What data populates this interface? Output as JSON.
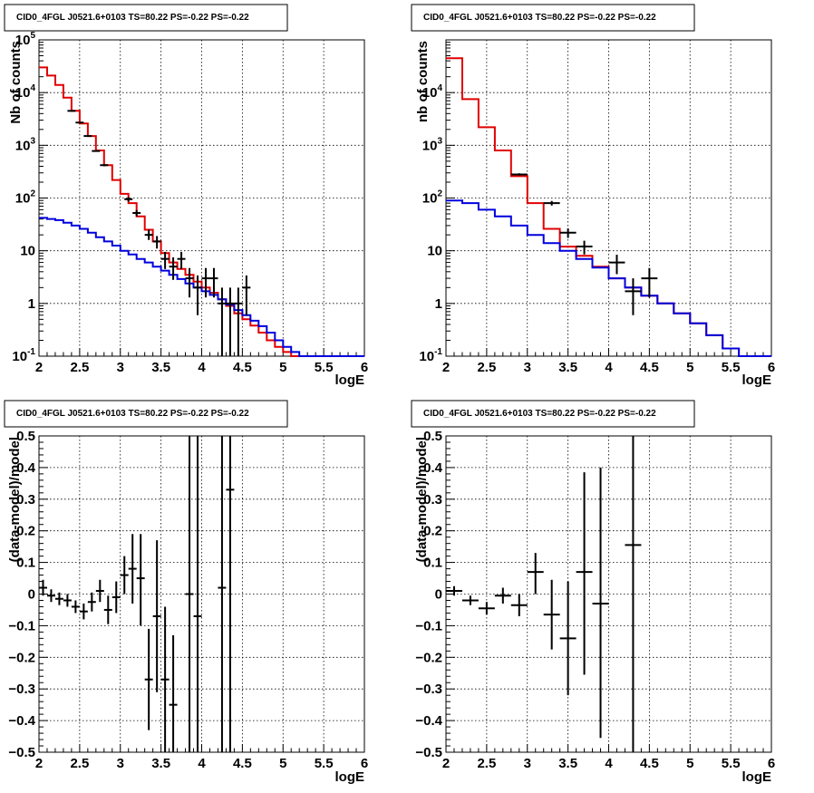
{
  "colors": {
    "data": "#000000",
    "total_model": "#e00000",
    "component_model": "#0000dd"
  },
  "chart_data": [
    {
      "type": "line",
      "title": "CID0_4FGL J0521.6+0103 TS=80.22 PS=-0.22 PS=-0.22",
      "xlabel": "logE",
      "ylabel": "Nb of counts",
      "xlim": [
        2,
        6
      ],
      "ylim": [
        0.1,
        100000
      ],
      "yscale": "log",
      "grid": true,
      "xticks": [
        "2",
        "2.5",
        "3",
        "3.5",
        "4",
        "4.5",
        "5",
        "5.5",
        "6"
      ],
      "yticks": [
        {
          "v": 0.1,
          "t": "10",
          "sup": "-1"
        },
        {
          "v": 1,
          "t": "1",
          "sup": ""
        },
        {
          "v": 10,
          "t": "10",
          "sup": ""
        },
        {
          "v": 100,
          "t": "10",
          "sup": "2"
        },
        {
          "v": 1000,
          "t": "10",
          "sup": "3"
        },
        {
          "v": 10000,
          "t": "10",
          "sup": "4"
        },
        {
          "v": 100000,
          "t": "10",
          "sup": "5"
        }
      ],
      "bin_edges": [
        2.0,
        2.1,
        2.2,
        2.3,
        2.4,
        2.5,
        2.6,
        2.7,
        2.8,
        2.9,
        3.0,
        3.1,
        3.2,
        3.3,
        3.4,
        3.5,
        3.6,
        3.7,
        3.8,
        3.9,
        4.0,
        4.1,
        4.2,
        4.3,
        4.4,
        4.5,
        4.6,
        4.7,
        4.8,
        4.9,
        5.0,
        5.1,
        5.2,
        5.3,
        5.4,
        5.5,
        5.6,
        5.7,
        5.8,
        5.9,
        6.0
      ],
      "series": [
        {
          "role": "total_model",
          "values": [
            30000,
            21000,
            14000,
            8000,
            4500,
            2600,
            1500,
            800,
            420,
            220,
            120,
            80,
            45,
            25,
            15,
            9,
            6,
            4.5,
            3.5,
            2.6,
            2.0,
            1.6,
            1.2,
            0.9,
            0.65,
            0.5,
            0.38,
            0.28,
            0.2,
            0.15,
            0.12,
            0.1,
            0.1,
            0.1,
            0.1,
            0.1,
            0.1,
            0.1,
            0.1,
            0.1
          ]
        },
        {
          "role": "component_model",
          "values": [
            42,
            40,
            38,
            34,
            30,
            26,
            22,
            18,
            15,
            12.5,
            10,
            8.5,
            7,
            6,
            5,
            4.2,
            3.5,
            2.9,
            2.4,
            2.0,
            1.7,
            1.45,
            1.2,
            0.95,
            0.75,
            0.6,
            0.47,
            0.37,
            0.28,
            0.2,
            0.15,
            0.12,
            0.1,
            0.1,
            0.1,
            0.1,
            0.1,
            0.1,
            0.1,
            0.1
          ]
        }
      ],
      "points": [
        {
          "x": 2.4,
          "y": 4500,
          "ex": 0.05,
          "lo": 4400,
          "hi": 4600
        },
        {
          "x": 2.5,
          "y": 2700,
          "ex": 0.05,
          "lo": 2650,
          "hi": 2750
        },
        {
          "x": 2.6,
          "y": 1500,
          "ex": 0.05,
          "lo": 1470,
          "hi": 1530
        },
        {
          "x": 2.7,
          "y": 780,
          "ex": 0.05,
          "lo": 760,
          "hi": 800
        },
        {
          "x": 2.8,
          "y": 420,
          "ex": 0.05,
          "lo": 400,
          "hi": 440
        },
        {
          "x": 3.1,
          "y": 95,
          "ex": 0.05,
          "lo": 86,
          "hi": 104
        },
        {
          "x": 3.2,
          "y": 52,
          "ex": 0.05,
          "lo": 45,
          "hi": 59
        },
        {
          "x": 3.35,
          "y": 20,
          "ex": 0.05,
          "lo": 16,
          "hi": 25
        },
        {
          "x": 3.45,
          "y": 15,
          "ex": 0.05,
          "lo": 11,
          "hi": 19
        },
        {
          "x": 3.55,
          "y": 7,
          "ex": 0.05,
          "lo": 4.5,
          "hi": 9.5
        },
        {
          "x": 3.65,
          "y": 5,
          "ex": 0.05,
          "lo": 2.8,
          "hi": 7.5
        },
        {
          "x": 3.75,
          "y": 7,
          "ex": 0.05,
          "lo": 4.5,
          "hi": 9.5
        },
        {
          "x": 3.85,
          "y": 3,
          "ex": 0.05,
          "lo": 1.3,
          "hi": 4.7
        },
        {
          "x": 3.95,
          "y": 2,
          "ex": 0.05,
          "lo": 0.6,
          "hi": 3.4
        },
        {
          "x": 4.05,
          "y": 3,
          "ex": 0.05,
          "lo": 1.3,
          "hi": 4.7
        },
        {
          "x": 4.15,
          "y": 3,
          "ex": 0.05,
          "lo": 1.3,
          "hi": 4.7
        },
        {
          "x": 4.25,
          "y": 1,
          "ex": 0.05,
          "lo": 0.1,
          "hi": 2.0
        },
        {
          "x": 4.35,
          "y": 1,
          "ex": 0.05,
          "lo": 0.1,
          "hi": 2.0
        },
        {
          "x": 4.45,
          "y": 1,
          "ex": 0.05,
          "lo": 0.1,
          "hi": 2.0
        },
        {
          "x": 4.55,
          "y": 2,
          "ex": 0.05,
          "lo": 0.6,
          "hi": 3.4
        }
      ]
    },
    {
      "type": "line",
      "title": "CID0_4FGL J0521.6+0103 TS=80.22 PS=-0.22 PS=-0.22",
      "xlabel": "logE",
      "ylabel": "nb of counts",
      "xlim": [
        2,
        6
      ],
      "ylim": [
        0.1,
        100000
      ],
      "yscale": "log",
      "grid": true,
      "xticks": [
        "2",
        "2.5",
        "3",
        "3.5",
        "4",
        "4.5",
        "5",
        "5.5",
        "6"
      ],
      "yticks": [
        {
          "v": 0.1,
          "t": "10",
          "sup": "-1"
        },
        {
          "v": 1,
          "t": "1",
          "sup": ""
        },
        {
          "v": 10,
          "t": "10",
          "sup": ""
        },
        {
          "v": 100,
          "t": "10",
          "sup": "2"
        },
        {
          "v": 1000,
          "t": "10",
          "sup": "3"
        },
        {
          "v": 10000,
          "t": "10",
          "sup": "4"
        }
      ],
      "bin_edges": [
        2.0,
        2.2,
        2.4,
        2.6,
        2.8,
        3.0,
        3.2,
        3.4,
        3.6,
        3.8,
        4.0,
        4.2,
        4.4,
        4.6,
        4.8,
        5.0,
        5.2,
        5.4,
        5.6,
        5.8,
        6.0
      ],
      "series": [
        {
          "role": "total_model",
          "values": [
            45000,
            7500,
            2200,
            800,
            260,
            80,
            26,
            12,
            8,
            5,
            3,
            2,
            1.4,
            1.0,
            0.65,
            0.42,
            0.25,
            0.14,
            0.1,
            0.1
          ]
        },
        {
          "role": "component_model",
          "values": [
            90,
            80,
            60,
            45,
            30,
            20,
            14,
            10,
            7,
            4.8,
            3,
            2,
            1.4,
            1.0,
            0.65,
            0.42,
            0.25,
            0.14,
            0.1,
            0.1
          ]
        }
      ],
      "points": [
        {
          "x": 2.9,
          "y": 280,
          "ex": 0.1,
          "lo": 265,
          "hi": 295
        },
        {
          "x": 3.3,
          "y": 80,
          "ex": 0.1,
          "lo": 72,
          "hi": 88
        },
        {
          "x": 3.5,
          "y": 22,
          "ex": 0.1,
          "lo": 17.5,
          "hi": 26.5
        },
        {
          "x": 3.7,
          "y": 12,
          "ex": 0.1,
          "lo": 8.5,
          "hi": 15.5
        },
        {
          "x": 4.1,
          "y": 6,
          "ex": 0.1,
          "lo": 3.6,
          "hi": 8.4
        },
        {
          "x": 4.3,
          "y": 1.7,
          "ex": 0.1,
          "lo": 0.6,
          "hi": 3.0
        },
        {
          "x": 4.5,
          "y": 3,
          "ex": 0.1,
          "lo": 1.3,
          "hi": 4.7
        }
      ]
    },
    {
      "type": "scatter",
      "title": "CID0_4FGL J0521.6+0103 TS=80.22 PS=-0.22 PS=-0.22",
      "xlabel": "logE",
      "ylabel": "(data-model)/model",
      "xlim": [
        2,
        6
      ],
      "ylim": [
        -0.5,
        0.5
      ],
      "yscale": "linear",
      "grid": true,
      "xticks": [
        "2",
        "2.5",
        "3",
        "3.5",
        "4",
        "4.5",
        "5",
        "5.5",
        "6"
      ],
      "yticks": [
        {
          "v": -0.5,
          "t": "−0.5",
          "sup": ""
        },
        {
          "v": -0.4,
          "t": "−0.4",
          "sup": ""
        },
        {
          "v": -0.3,
          "t": "−0.3",
          "sup": ""
        },
        {
          "v": -0.2,
          "t": "−0.2",
          "sup": ""
        },
        {
          "v": -0.1,
          "t": "−0.1",
          "sup": ""
        },
        {
          "v": 0,
          "t": "0",
          "sup": ""
        },
        {
          "v": 0.1,
          "t": "0.1",
          "sup": ""
        },
        {
          "v": 0.2,
          "t": "0.2",
          "sup": ""
        },
        {
          "v": 0.3,
          "t": "0.3",
          "sup": ""
        },
        {
          "v": 0.4,
          "t": "0.4",
          "sup": ""
        },
        {
          "v": 0.5,
          "t": "0.5",
          "sup": ""
        }
      ],
      "points": [
        {
          "x": 2.05,
          "y": 0.02,
          "ex": 0.05,
          "lo": -0.005,
          "hi": 0.045
        },
        {
          "x": 2.15,
          "y": -0.005,
          "ex": 0.05,
          "lo": -0.025,
          "hi": 0.015
        },
        {
          "x": 2.25,
          "y": -0.015,
          "ex": 0.05,
          "lo": -0.035,
          "hi": 0.005
        },
        {
          "x": 2.35,
          "y": -0.02,
          "ex": 0.05,
          "lo": -0.04,
          "hi": 0.0
        },
        {
          "x": 2.45,
          "y": -0.04,
          "ex": 0.05,
          "lo": -0.06,
          "hi": -0.02
        },
        {
          "x": 2.55,
          "y": -0.055,
          "ex": 0.05,
          "lo": -0.08,
          "hi": -0.03
        },
        {
          "x": 2.65,
          "y": -0.025,
          "ex": 0.05,
          "lo": -0.055,
          "hi": 0.005
        },
        {
          "x": 2.75,
          "y": 0.01,
          "ex": 0.05,
          "lo": -0.025,
          "hi": 0.045
        },
        {
          "x": 2.85,
          "y": -0.05,
          "ex": 0.05,
          "lo": -0.095,
          "hi": -0.005
        },
        {
          "x": 2.95,
          "y": -0.01,
          "ex": 0.05,
          "lo": -0.06,
          "hi": 0.04
        },
        {
          "x": 3.05,
          "y": 0.06,
          "ex": 0.05,
          "lo": 0.0,
          "hi": 0.12
        },
        {
          "x": 3.15,
          "y": 0.08,
          "ex": 0.05,
          "lo": -0.03,
          "hi": 0.19
        },
        {
          "x": 3.25,
          "y": 0.05,
          "ex": 0.05,
          "lo": -0.1,
          "hi": 0.19
        },
        {
          "x": 3.35,
          "y": -0.27,
          "ex": 0.05,
          "lo": -0.43,
          "hi": -0.11
        },
        {
          "x": 3.45,
          "y": -0.07,
          "ex": 0.05,
          "lo": -0.31,
          "hi": 0.17
        },
        {
          "x": 3.55,
          "y": -0.27,
          "ex": 0.05,
          "lo": -0.5,
          "hi": -0.04
        },
        {
          "x": 3.65,
          "y": -0.35,
          "ex": 0.05,
          "lo": -0.5,
          "hi": -0.13
        },
        {
          "x": 3.85,
          "y": 0.0,
          "ex": 0.05,
          "lo": -0.5,
          "hi": 0.5
        },
        {
          "x": 3.95,
          "y": -0.07,
          "ex": 0.05,
          "lo": -0.5,
          "hi": 0.5
        },
        {
          "x": 4.25,
          "y": 0.02,
          "ex": 0.05,
          "lo": -0.5,
          "hi": 0.5
        },
        {
          "x": 4.35,
          "y": 0.33,
          "ex": 0.05,
          "lo": -0.5,
          "hi": 0.5
        }
      ]
    },
    {
      "type": "scatter",
      "title": "CID0_4FGL J0521.6+0103 TS=80.22 PS=-0.22 PS=-0.22",
      "xlabel": "logE",
      "ylabel": "(data-model)/model",
      "xlim": [
        2,
        6
      ],
      "ylim": [
        -0.5,
        0.5
      ],
      "yscale": "linear",
      "grid": true,
      "xticks": [
        "2",
        "2.5",
        "3",
        "3.5",
        "4",
        "4.5",
        "5",
        "5.5",
        "6"
      ],
      "yticks": [
        {
          "v": -0.5,
          "t": "−0.5",
          "sup": ""
        },
        {
          "v": -0.4,
          "t": "−0.4",
          "sup": ""
        },
        {
          "v": -0.3,
          "t": "−0.3",
          "sup": ""
        },
        {
          "v": -0.2,
          "t": "−0.2",
          "sup": ""
        },
        {
          "v": -0.1,
          "t": "−0.1",
          "sup": ""
        },
        {
          "v": 0,
          "t": "0",
          "sup": ""
        },
        {
          "v": 0.1,
          "t": "0.1",
          "sup": ""
        },
        {
          "v": 0.2,
          "t": "0.2",
          "sup": ""
        },
        {
          "v": 0.3,
          "t": "0.3",
          "sup": ""
        },
        {
          "v": 0.4,
          "t": "0.4",
          "sup": ""
        },
        {
          "v": 0.5,
          "t": "0.5",
          "sup": ""
        }
      ],
      "points": [
        {
          "x": 2.1,
          "y": 0.01,
          "ex": 0.1,
          "lo": -0.005,
          "hi": 0.025
        },
        {
          "x": 2.3,
          "y": -0.02,
          "ex": 0.1,
          "lo": -0.035,
          "hi": -0.005
        },
        {
          "x": 2.5,
          "y": -0.045,
          "ex": 0.1,
          "lo": -0.065,
          "hi": -0.025
        },
        {
          "x": 2.7,
          "y": -0.005,
          "ex": 0.1,
          "lo": -0.03,
          "hi": 0.02
        },
        {
          "x": 2.9,
          "y": -0.035,
          "ex": 0.1,
          "lo": -0.07,
          "hi": 0.0
        },
        {
          "x": 3.1,
          "y": 0.07,
          "ex": 0.1,
          "lo": 0.0,
          "hi": 0.13
        },
        {
          "x": 3.3,
          "y": -0.065,
          "ex": 0.1,
          "lo": -0.175,
          "hi": 0.045
        },
        {
          "x": 3.5,
          "y": -0.14,
          "ex": 0.1,
          "lo": -0.32,
          "hi": 0.04
        },
        {
          "x": 3.7,
          "y": 0.07,
          "ex": 0.1,
          "lo": -0.255,
          "hi": 0.385
        },
        {
          "x": 3.9,
          "y": -0.03,
          "ex": 0.1,
          "lo": -0.455,
          "hi": 0.4
        },
        {
          "x": 4.3,
          "y": 0.155,
          "ex": 0.1,
          "lo": -0.5,
          "hi": 0.5
        }
      ]
    }
  ]
}
